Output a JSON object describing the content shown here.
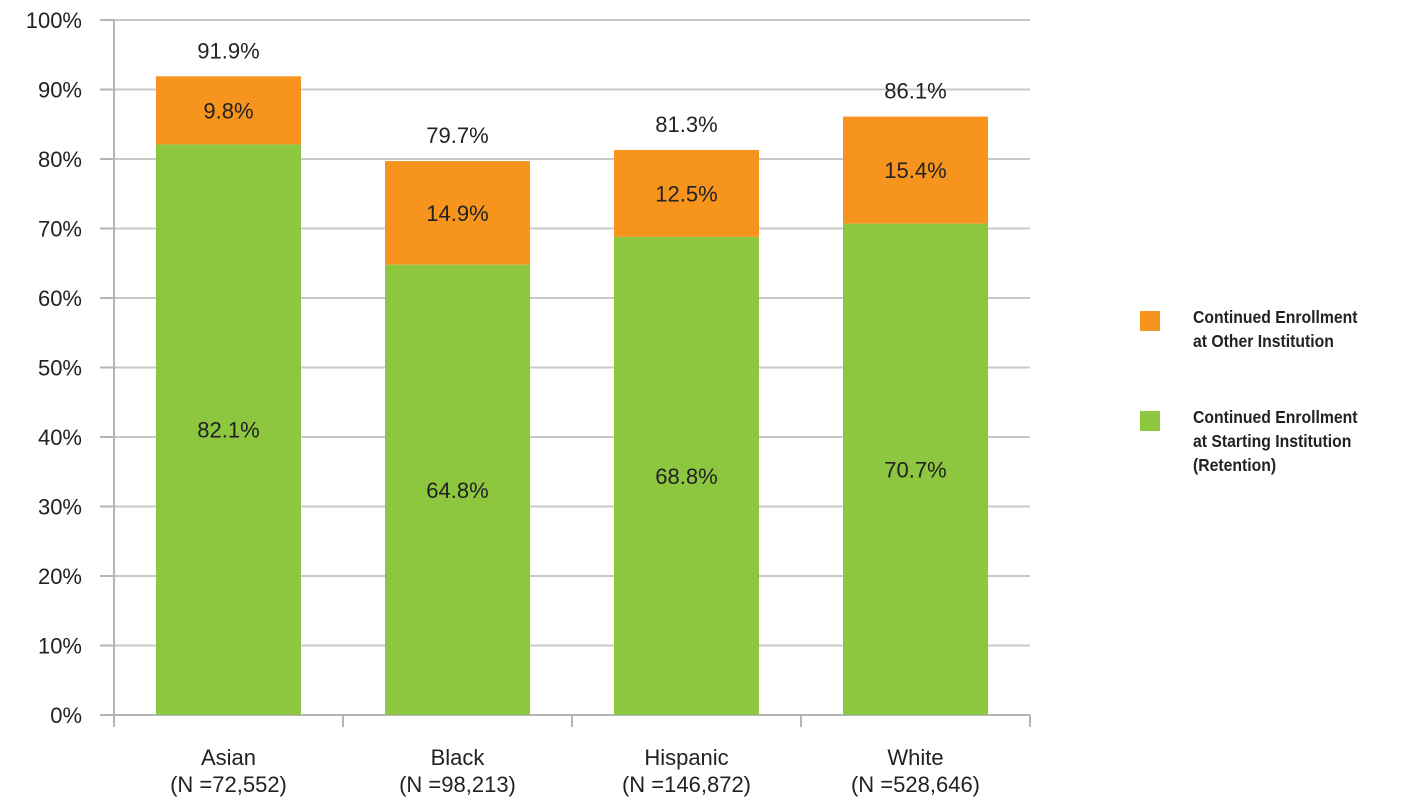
{
  "chart_data": {
    "type": "bar",
    "stacked": true,
    "categories": [
      "Asian",
      "Black",
      "Hispanic",
      "White"
    ],
    "category_sublabels": [
      "(N =72,552)",
      "(N =98,213)",
      "(N =146,872)",
      "(N =528,646)"
    ],
    "series": [
      {
        "name": "Continued Enrollment\nat Starting Institution\n(Retention)",
        "values": [
          82.1,
          64.8,
          68.8,
          70.7
        ],
        "labels": [
          "82.1%",
          "64.8%",
          "68.8%",
          "70.7%"
        ],
        "color": "#8DC63F"
      },
      {
        "name": "Continued Enrollment\nat Other Institution",
        "values": [
          9.8,
          14.9,
          12.5,
          15.4
        ],
        "labels": [
          "9.8%",
          "14.9%",
          "12.5%",
          "15.4%"
        ],
        "color": "#F7941D"
      }
    ],
    "totals": [
      91.9,
      79.7,
      81.3,
      86.1
    ],
    "total_labels": [
      "91.9%",
      "79.7%",
      "81.3%",
      "86.1%"
    ],
    "y_ticks": [
      "0%",
      "10%",
      "20%",
      "30%",
      "40%",
      "50%",
      "60%",
      "70%",
      "80%",
      "90%",
      "100%"
    ],
    "ylim": [
      0,
      100
    ],
    "grid": true,
    "legend_position": "right",
    "title": "",
    "xlabel": "",
    "ylabel": ""
  }
}
